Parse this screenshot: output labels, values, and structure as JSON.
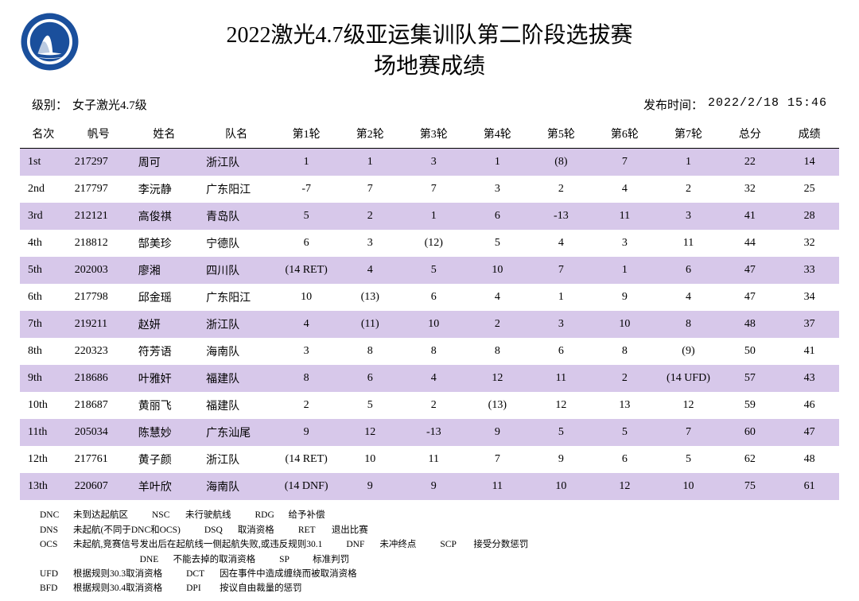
{
  "logo": {
    "ring_color": "#1a4f9c",
    "inner_color": "#1a4f9c",
    "text_color": "#ffffff"
  },
  "title": {
    "line1": "2022激光4.7级亚运集训队第二阶段选拔赛",
    "line2": "场地赛成绩",
    "fontsize": 28
  },
  "meta": {
    "class_label": "级别：",
    "class_value": "女子激光4.7级",
    "publish_label": "发布时间：",
    "publish_value": "2022/2/18 15:46"
  },
  "colors": {
    "row_odd_bg": "#d7c8ea",
    "row_even_bg": "#ffffff",
    "text": "#000000",
    "header_border": "#000000"
  },
  "table": {
    "columns": [
      "名次",
      "帆号",
      "姓名",
      "队名",
      "第1轮",
      "第2轮",
      "第3轮",
      "第4轮",
      "第5轮",
      "第6轮",
      "第7轮",
      "总分",
      "成绩"
    ],
    "rows": [
      {
        "rank": "1st",
        "sail": "217297",
        "name": "周可",
        "team": "浙江队",
        "r": [
          "1",
          "1",
          "3",
          "1",
          "(8)",
          "7",
          "1"
        ],
        "total": "22",
        "score": "14"
      },
      {
        "rank": "2nd",
        "sail": "217797",
        "name": "李沅静",
        "team": "广东阳江",
        "r": [
          "-7",
          "7",
          "7",
          "3",
          "2",
          "4",
          "2"
        ],
        "total": "32",
        "score": "25"
      },
      {
        "rank": "3rd",
        "sail": "212121",
        "name": "高俊祺",
        "team": "青岛队",
        "r": [
          "5",
          "2",
          "1",
          "6",
          "-13",
          "11",
          "3"
        ],
        "total": "41",
        "score": "28"
      },
      {
        "rank": "4th",
        "sail": "218812",
        "name": "郜美珍",
        "team": "宁德队",
        "r": [
          "6",
          "3",
          "(12)",
          "5",
          "4",
          "3",
          "11"
        ],
        "total": "44",
        "score": "32"
      },
      {
        "rank": "5th",
        "sail": "202003",
        "name": "廖湘",
        "team": "四川队",
        "r": [
          "(14 RET)",
          "4",
          "5",
          "10",
          "7",
          "1",
          "6"
        ],
        "total": "47",
        "score": "33"
      },
      {
        "rank": "6th",
        "sail": "217798",
        "name": "邱金瑶",
        "team": "广东阳江",
        "r": [
          "10",
          "(13)",
          "6",
          "4",
          "1",
          "9",
          "4"
        ],
        "total": "47",
        "score": "34"
      },
      {
        "rank": "7th",
        "sail": "219211",
        "name": "赵妍",
        "team": "浙江队",
        "r": [
          "4",
          "(11)",
          "10",
          "2",
          "3",
          "10",
          "8"
        ],
        "total": "48",
        "score": "37"
      },
      {
        "rank": "8th",
        "sail": "220323",
        "name": "符芳语",
        "team": "海南队",
        "r": [
          "3",
          "8",
          "8",
          "8",
          "6",
          "8",
          "(9)"
        ],
        "total": "50",
        "score": "41"
      },
      {
        "rank": "9th",
        "sail": "218686",
        "name": "叶雅奸",
        "team": "福建队",
        "r": [
          "8",
          "6",
          "4",
          "12",
          "11",
          "2",
          "(14 UFD)"
        ],
        "total": "57",
        "score": "43"
      },
      {
        "rank": "10th",
        "sail": "218687",
        "name": "黄丽飞",
        "team": "福建队",
        "r": [
          "2",
          "5",
          "2",
          "(13)",
          "12",
          "13",
          "12"
        ],
        "total": "59",
        "score": "46"
      },
      {
        "rank": "11th",
        "sail": "205034",
        "name": "陈慧妙",
        "team": "广东汕尾",
        "r": [
          "9",
          "12",
          "-13",
          "9",
          "5",
          "5",
          "7"
        ],
        "total": "60",
        "score": "47"
      },
      {
        "rank": "12th",
        "sail": "217761",
        "name": "黄子颜",
        "team": "浙江队",
        "r": [
          "(14 RET)",
          "10",
          "11",
          "7",
          "9",
          "6",
          "5"
        ],
        "total": "62",
        "score": "48"
      },
      {
        "rank": "13th",
        "sail": "220607",
        "name": "羊叶欣",
        "team": "海南队",
        "r": [
          "(14 DNF)",
          "9",
          "9",
          "11",
          "10",
          "12",
          "10"
        ],
        "total": "75",
        "score": "61"
      }
    ]
  },
  "legend": {
    "rows": [
      [
        {
          "code": "DNC",
          "desc": "未到达起航区"
        },
        {
          "code": "NSC",
          "desc": "未行驶航线"
        },
        {
          "code": "RDG",
          "desc": "给予补偿"
        }
      ],
      [
        {
          "code": "DNS",
          "desc": "未起航(不同于DNC和OCS)"
        },
        {
          "code": "DSQ",
          "desc": "取消资格"
        },
        {
          "code": "RET",
          "desc": "退出比赛"
        }
      ],
      [
        {
          "code": "OCS",
          "desc": "未起航,竞赛信号发出后在起航线一侧起航失败,或违反规则30.1"
        },
        {
          "code": "DNF",
          "desc": "未冲终点"
        },
        {
          "code": "SCP",
          "desc": "接受分数惩罚"
        }
      ],
      [
        {
          "code": "",
          "desc": ""
        },
        {
          "code": "DNE",
          "desc": "不能去掉的取消资格"
        },
        {
          "code": "SP",
          "desc": "标准判罚"
        }
      ],
      [
        {
          "code": "UFD",
          "desc": "根据规则30.3取消资格"
        },
        {
          "code": "DCT",
          "desc": "因在事件中造成缠绕而被取消资格"
        },
        {
          "code": "",
          "desc": ""
        }
      ],
      [
        {
          "code": "BFD",
          "desc": "根据规则30.4取消资格"
        },
        {
          "code": "DPI",
          "desc": "按议自由裁量的惩罚"
        },
        {
          "code": "",
          "desc": ""
        }
      ]
    ]
  }
}
